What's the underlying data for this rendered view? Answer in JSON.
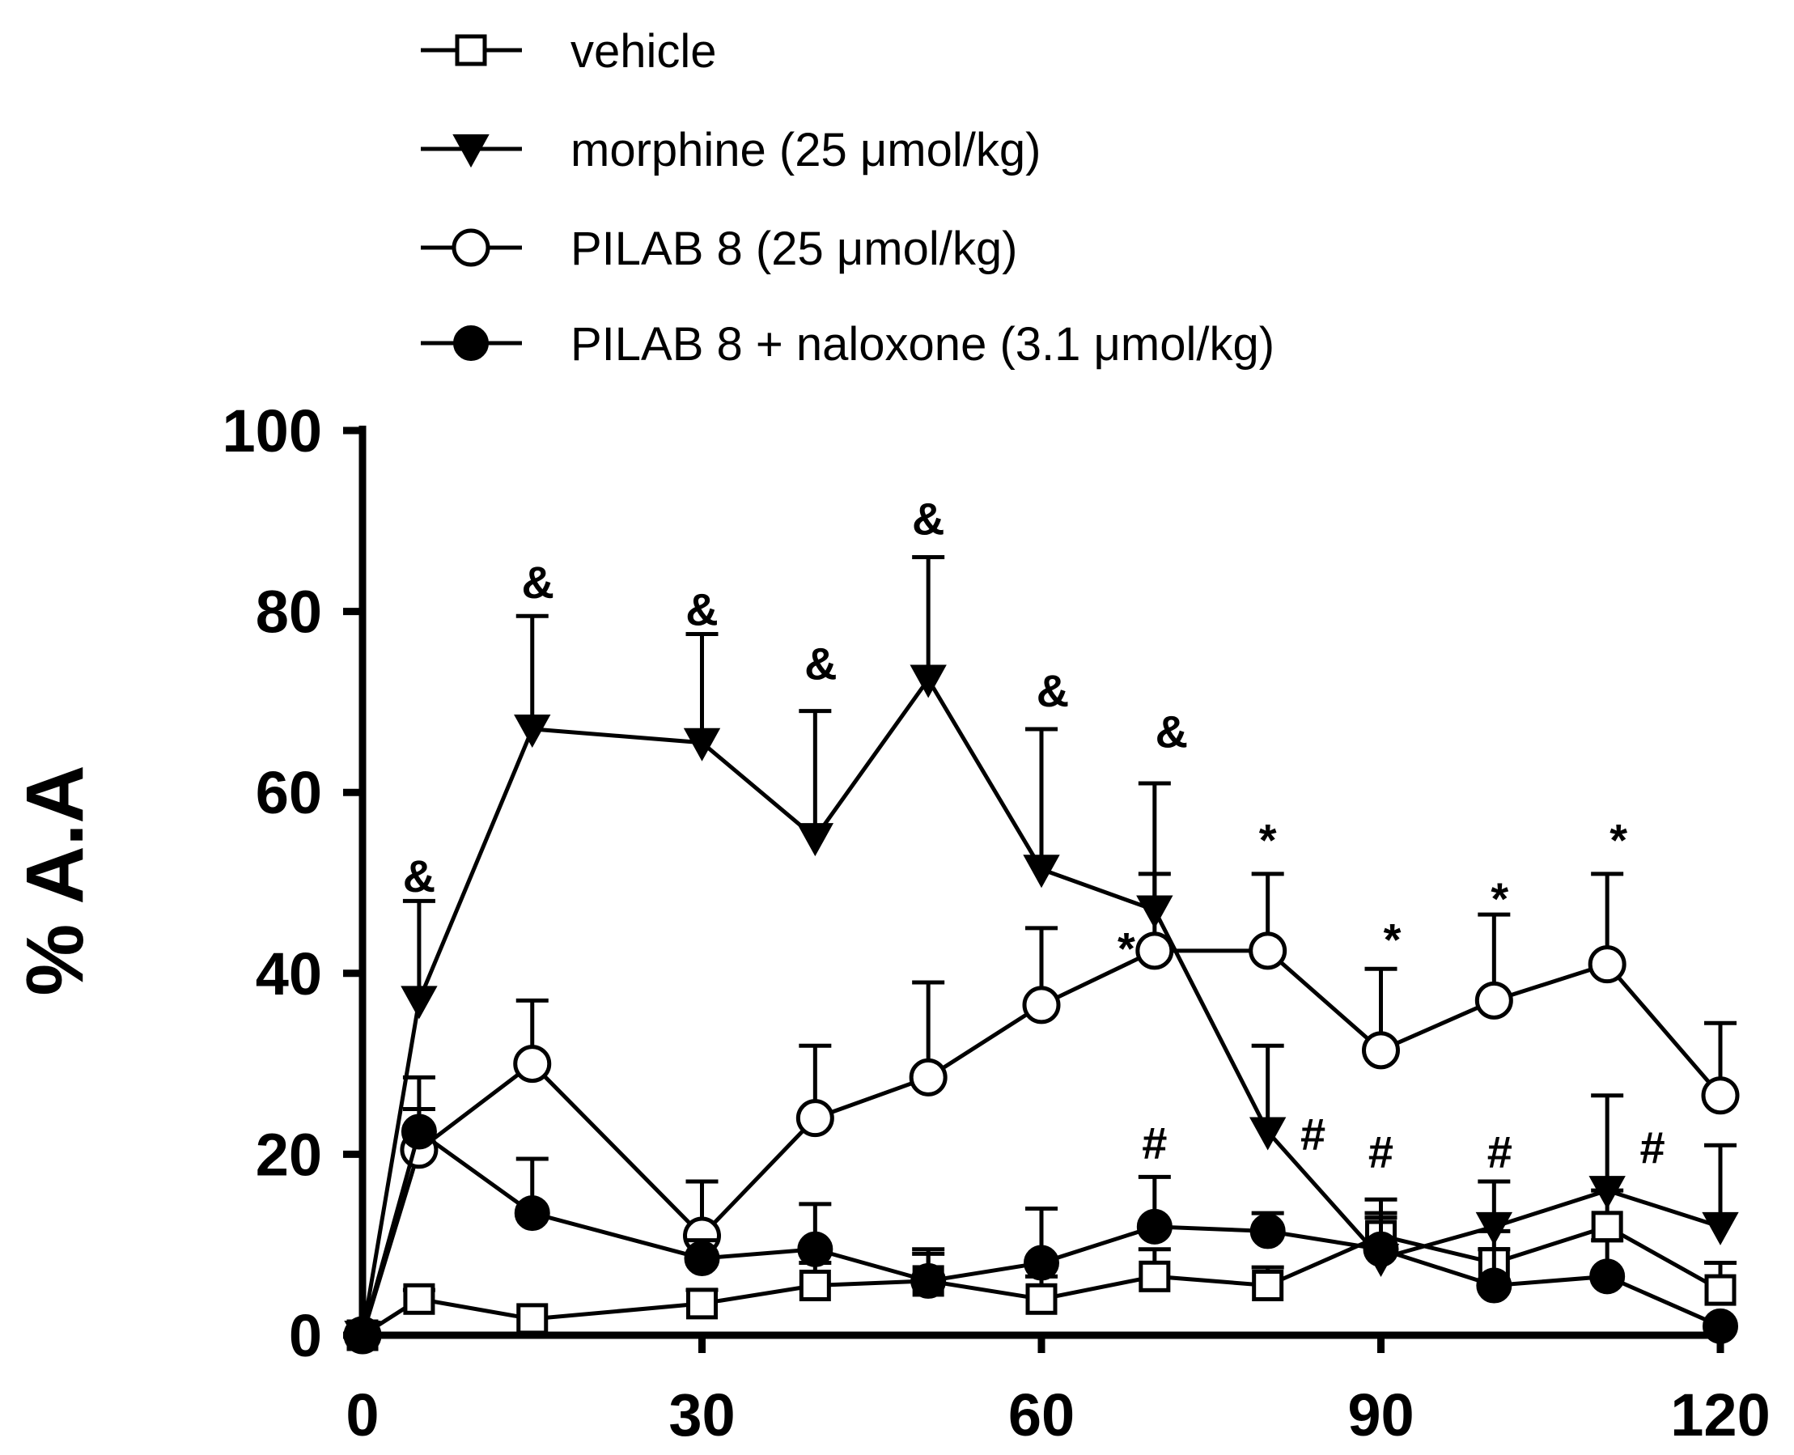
{
  "chart_data": {
    "type": "line",
    "title": "",
    "xlabel": "",
    "ylabel": "% A.A",
    "xlim": [
      0,
      120
    ],
    "ylim": [
      0,
      100
    ],
    "x_ticks": [
      "0",
      "30",
      "60",
      "90",
      "120"
    ],
    "y_ticks": [
      "0",
      "20",
      "40",
      "60",
      "80",
      "100"
    ],
    "grid": false,
    "legend_position": "top",
    "x": [
      0,
      5,
      15,
      30,
      40,
      50,
      60,
      70,
      80,
      90,
      100,
      110,
      120
    ],
    "series": [
      {
        "name": "vehicle",
        "marker": "open-square",
        "values": [
          0,
          4,
          1.8,
          3.5,
          5.5,
          6,
          4,
          6.5,
          5.5,
          11,
          8,
          12,
          5
        ],
        "errors": [
          0,
          1,
          0,
          1.5,
          2.5,
          3,
          2.5,
          3,
          2,
          4,
          3.5,
          4,
          3
        ]
      },
      {
        "name": "morphine (25 μmol/kg)",
        "marker": "filled-down-triangle",
        "values": [
          0,
          37,
          67,
          65.5,
          55,
          72.5,
          51.5,
          47,
          22.5,
          8.5,
          12,
          16,
          12
        ],
        "errors": [
          0,
          11,
          12.5,
          12,
          14,
          13.5,
          15.5,
          14,
          9.5,
          5,
          5,
          10.5,
          9
        ]
      },
      {
        "name": "PILAB 8 (25 μmol/kg)",
        "marker": "open-circle",
        "values": [
          0,
          20.5,
          30,
          11,
          24,
          28.5,
          36.5,
          42.5,
          42.5,
          31.5,
          37,
          41,
          26.5
        ],
        "errors": [
          0,
          8,
          7,
          6,
          8,
          10.5,
          8.5,
          8.5,
          8.5,
          9,
          9.5,
          10,
          8
        ]
      },
      {
        "name": "PILAB 8 + naloxone (3.1 μmol/kg)",
        "marker": "filled-circle",
        "values": [
          0,
          22.5,
          13.5,
          8.5,
          9.5,
          6,
          8,
          12,
          11.5,
          9.5,
          5.5,
          6.5,
          1
        ],
        "errors": [
          0,
          2.5,
          6,
          2,
          5,
          3.5,
          6,
          5.5,
          2,
          3.5,
          4,
          4,
          0
        ]
      }
    ],
    "annotations": [
      {
        "text": "&",
        "x": 5,
        "y": 49
      },
      {
        "text": "&",
        "x": 15.5,
        "y": 81.5
      },
      {
        "text": "&",
        "x": 30,
        "y": 78.5
      },
      {
        "text": "&",
        "x": 40.5,
        "y": 72.5
      },
      {
        "text": "&",
        "x": 50,
        "y": 88.5
      },
      {
        "text": "&",
        "x": 61,
        "y": 69.5
      },
      {
        "text": "&",
        "x": 71.5,
        "y": 65
      },
      {
        "text": "*",
        "x": 67.5,
        "y": 41
      },
      {
        "text": "*",
        "x": 80,
        "y": 53
      },
      {
        "text": "*",
        "x": 91,
        "y": 42
      },
      {
        "text": "*",
        "x": 100.5,
        "y": 46.5
      },
      {
        "text": "*",
        "x": 111,
        "y": 53
      },
      {
        "text": "#",
        "x": 70,
        "y": 19.5
      },
      {
        "text": "#",
        "x": 84,
        "y": 20.5
      },
      {
        "text": "#",
        "x": 90,
        "y": 18.5
      },
      {
        "text": "#",
        "x": 100.5,
        "y": 18.5
      },
      {
        "text": "#",
        "x": 114,
        "y": 19
      }
    ]
  }
}
